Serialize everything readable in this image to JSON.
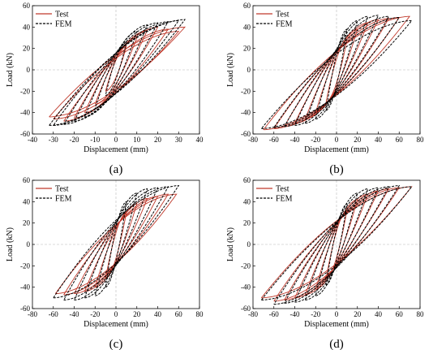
{
  "chart_data": [
    {
      "type": "line",
      "panel_label": "(a)",
      "xlabel": "Displacement  (mm)",
      "ylabel": "Load (kN)",
      "xlim": [
        -40,
        40
      ],
      "ylim": [
        -60,
        60
      ],
      "xticks": [
        -40,
        -30,
        -20,
        -10,
        0,
        10,
        20,
        30,
        40
      ],
      "yticks": [
        -60,
        -40,
        -20,
        0,
        20,
        40,
        60
      ],
      "legend_position": "top-left",
      "series": [
        {
          "name": "Test",
          "color": "#c0392b",
          "style": "solid",
          "cycles": [
            [
              5,
              22,
              -5,
              -20
            ],
            [
              10,
              30,
              -10,
              -32
            ],
            [
              15,
              37,
              -15,
              -40
            ],
            [
              20,
              40,
              -20,
              -45
            ],
            [
              25,
              38,
              -25,
              -48
            ],
            [
              30,
              36,
              -30,
              -46
            ],
            [
              33,
              40,
              -32,
              -44
            ]
          ]
        },
        {
          "name": "FEM",
          "color": "#000000",
          "style": "dashed",
          "cycles": [
            [
              5,
              26,
              -5,
              -24
            ],
            [
              10,
              36,
              -10,
              -36
            ],
            [
              15,
              42,
              -15,
              -44
            ],
            [
              20,
              44,
              -20,
              -48
            ],
            [
              25,
              45,
              -25,
              -51
            ],
            [
              30,
              46,
              -30,
              -52
            ],
            [
              33,
              47,
              -32,
              -52
            ]
          ]
        }
      ]
    },
    {
      "type": "line",
      "panel_label": "(b)",
      "xlabel": "Displacement  (mm)",
      "ylabel": "Load (kN)",
      "xlim": [
        -80,
        80
      ],
      "ylim": [
        -60,
        60
      ],
      "xticks": [
        -80,
        -60,
        -40,
        -20,
        0,
        20,
        40,
        60,
        80
      ],
      "yticks": [
        -60,
        -40,
        -20,
        0,
        20,
        40,
        60
      ],
      "legend_position": "top-left",
      "series": [
        {
          "name": "Test",
          "color": "#c0392b",
          "style": "solid",
          "cycles": [
            [
              10,
              28,
              -10,
              -30
            ],
            [
              20,
              38,
              -20,
              -40
            ],
            [
              30,
              44,
              -30,
              -46
            ],
            [
              40,
              47,
              -40,
              -50
            ],
            [
              50,
              48,
              -50,
              -53
            ],
            [
              60,
              49,
              -60,
              -55
            ],
            [
              70,
              50,
              -70,
              -56
            ]
          ]
        },
        {
          "name": "FEM",
          "color": "#000000",
          "style": "dashed",
          "cycles": [
            [
              10,
              38,
              -10,
              -38
            ],
            [
              20,
              46,
              -20,
              -46
            ],
            [
              30,
              50,
              -30,
              -50
            ],
            [
              40,
              51,
              -40,
              -52
            ],
            [
              50,
              50,
              -50,
              -53
            ],
            [
              60,
              49,
              -60,
              -54
            ],
            [
              72,
              46,
              -72,
              -55
            ]
          ]
        }
      ]
    },
    {
      "type": "line",
      "panel_label": "(c)",
      "xlabel": "Displacement  (mm)",
      "ylabel": "Load (kN)",
      "xlim": [
        -80,
        80
      ],
      "ylim": [
        -60,
        60
      ],
      "xticks": [
        -80,
        -60,
        -40,
        -20,
        0,
        20,
        40,
        60,
        80
      ],
      "yticks": [
        -60,
        -40,
        -20,
        0,
        20,
        40,
        60
      ],
      "legend_position": "top-left",
      "series": [
        {
          "name": "Test",
          "color": "#c0392b",
          "style": "solid",
          "cycles": [
            [
              10,
              30,
              -10,
              -32
            ],
            [
              20,
              38,
              -20,
              -40
            ],
            [
              30,
              43,
              -30,
              -44
            ],
            [
              40,
              45,
              -40,
              -46
            ],
            [
              50,
              47,
              -50,
              -47
            ],
            [
              58,
              47,
              -58,
              -46
            ]
          ]
        },
        {
          "name": "FEM",
          "color": "#000000",
          "style": "dashed",
          "cycles": [
            [
              10,
              40,
              -10,
              -40
            ],
            [
              20,
              48,
              -20,
              -48
            ],
            [
              30,
              52,
              -30,
              -50
            ],
            [
              40,
              53,
              -40,
              -52
            ],
            [
              50,
              54,
              -50,
              -52
            ],
            [
              60,
              55,
              -60,
              -50
            ]
          ]
        }
      ]
    },
    {
      "type": "line",
      "panel_label": "(d)",
      "xlabel": "Displacement  (mm)",
      "ylabel": "Load (kN)",
      "xlim": [
        -80,
        80
      ],
      "ylim": [
        -60,
        60
      ],
      "xticks": [
        -80,
        -60,
        -40,
        -20,
        0,
        20,
        40,
        60,
        80
      ],
      "yticks": [
        -60,
        -40,
        -20,
        0,
        20,
        40,
        60
      ],
      "legend_position": "top-left",
      "series": [
        {
          "name": "Test",
          "color": "#c0392b",
          "style": "solid",
          "cycles": [
            [
              10,
              32,
              -10,
              -32
            ],
            [
              20,
              42,
              -20,
              -42
            ],
            [
              30,
              47,
              -30,
              -47
            ],
            [
              40,
              50,
              -40,
              -50
            ],
            [
              50,
              52,
              -50,
              -52
            ],
            [
              60,
              53,
              -60,
              -53
            ],
            [
              72,
              54,
              -72,
              -50
            ]
          ]
        },
        {
          "name": "FEM",
          "color": "#000000",
          "style": "dashed",
          "cycles": [
            [
              10,
              38,
              -10,
              -38
            ],
            [
              20,
              48,
              -20,
              -48
            ],
            [
              30,
              52,
              -30,
              -52
            ],
            [
              40,
              53,
              -40,
              -54
            ],
            [
              50,
              54,
              -50,
              -55
            ],
            [
              60,
              55,
              -60,
              -56
            ],
            [
              72,
              54,
              -72,
              -52
            ]
          ]
        }
      ]
    }
  ]
}
